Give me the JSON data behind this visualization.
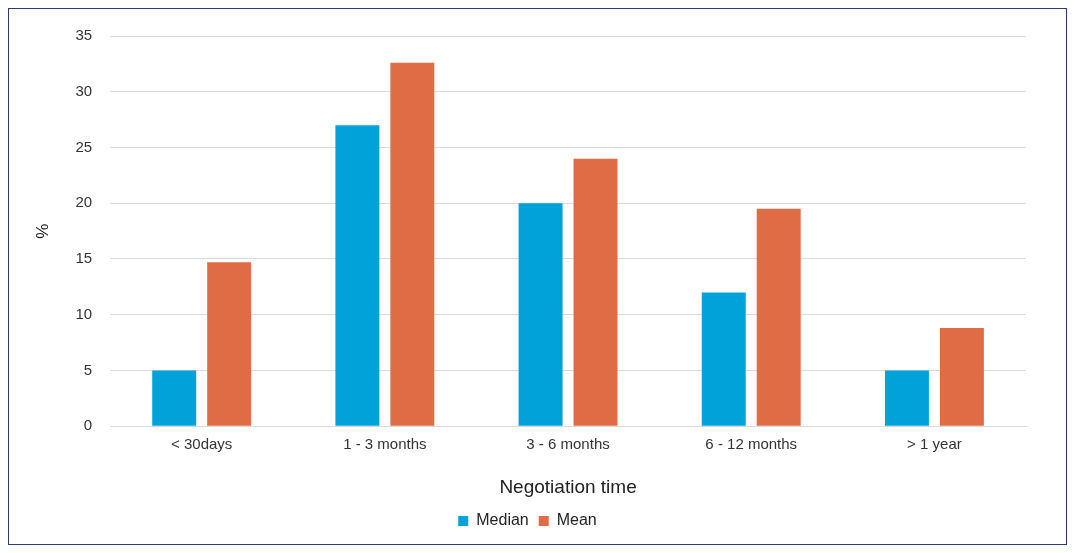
{
  "chart_data": {
    "type": "bar",
    "xlabel": "Negotiation time",
    "ylabel": "%",
    "categories": [
      "< 30days",
      "1 - 3 months",
      "3 - 6 months",
      "6 - 12 months",
      "> 1 year"
    ],
    "series": [
      {
        "name": "Median",
        "color": "#00a3d9",
        "values": [
          5,
          27,
          20,
          12,
          5
        ]
      },
      {
        "name": "Mean",
        "color": "#e06c45",
        "values": [
          14.7,
          32.6,
          24.0,
          19.5,
          8.8
        ]
      }
    ],
    "ylim": [
      0,
      35
    ],
    "yticks": [
      0,
      5,
      10,
      15,
      20,
      25,
      30,
      35
    ],
    "grid": "y",
    "legend": "bottom"
  }
}
